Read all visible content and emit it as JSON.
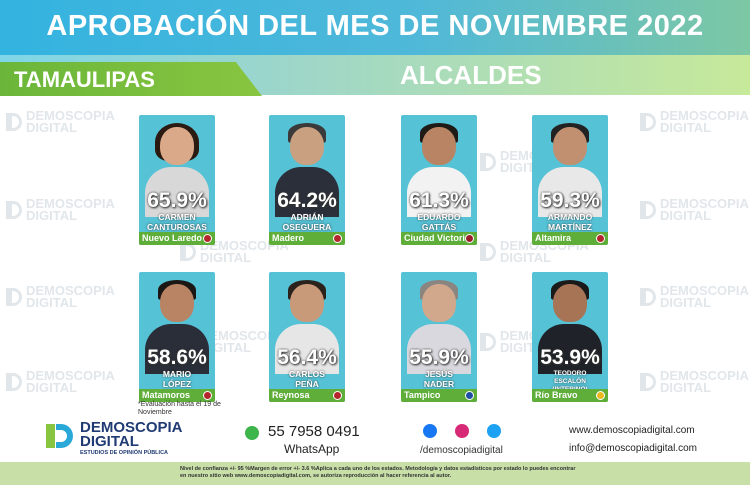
{
  "header": {
    "title": "APROBACIÓN DEL MES DE NOVIEMBRE 2022",
    "state": "TAMAULIPAS",
    "subtitle": "ALCALDES"
  },
  "watermark": {
    "line1": "DEMOSCOPIA",
    "line2": "DIGITAL"
  },
  "candidates": [
    {
      "pct": "65.9%",
      "name1": "CARMEN",
      "name2": "CANTUROSAS",
      "city": "Nuevo Laredo"
    },
    {
      "pct": "64.2%",
      "name1": "ADRIÁN",
      "name2": "OSEGUERA",
      "city": "Madero"
    },
    {
      "pct": "61.3%",
      "name1": "EDUARDO",
      "name2": "GATTÁS",
      "city": "Ciudad Victoria"
    },
    {
      "pct": "59.3%",
      "name1": "ARMANDO",
      "name2": "MARTÍNEZ",
      "city": "Altamira"
    },
    {
      "pct": "58.6%",
      "name1": "MARIO",
      "name2": "LÓPEZ",
      "city": "Matamoros"
    },
    {
      "pct": "56.4%",
      "name1": "CARLOS",
      "name2": "PEÑA",
      "city": "Reynosa"
    },
    {
      "pct": "55.9%",
      "name1": "JESÚS",
      "name2": "NADER",
      "city": "Tampico"
    },
    {
      "pct": "53.9%",
      "name1": "TEODORO",
      "name2": "ESCALÓN",
      "name3": "(INTERINO)",
      "city": "Río Bravo"
    }
  ],
  "note": "*Evaluación hasta el 19 de Noviembre",
  "brand": {
    "line1": "DEMOSCOPIA",
    "line2": "DIGITAL",
    "tagline": "ESTUDIOS DE OPINIÓN PÚBLICA"
  },
  "contact": {
    "phone": "55 7958 0491",
    "whatsapp_label": "WhatsApp",
    "social_handle": "/demoscopiadigital",
    "website": "www.demoscopiadigital.com",
    "email": "info@demoscopiadigital.com"
  },
  "footer": "Nivel de confianza +/- 95 %Margen de error +/- 3.6 %Aplica a cada uno de los estados. Metodología y datos estadísticos por estado lo puedes encontrar en nuestro sitio web www.demoscopiadigital.com, se autoriza reproducción al hacer referencia al autor.",
  "colors": {
    "header": "#33b3e0",
    "state_tab": "#6bb63a",
    "card": "#55c2d6",
    "city_bar": "#5fae3a",
    "brand": "#203a73"
  }
}
